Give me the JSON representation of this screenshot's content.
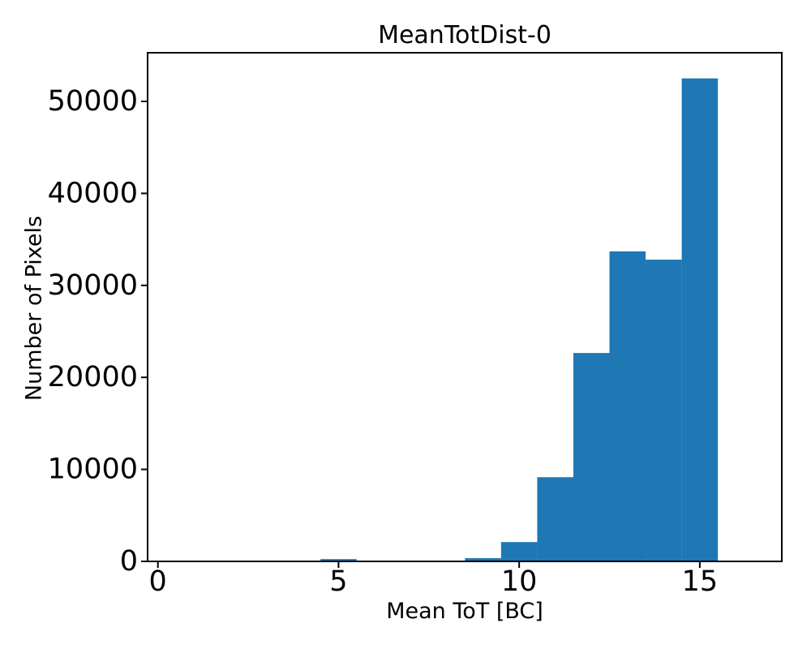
{
  "figure": {
    "title": "MeanTotDist-0",
    "xlabel": "Mean ToT [BC]",
    "ylabel": "Number of Pixels"
  },
  "chart_data": {
    "type": "bar",
    "subtype": "histogram",
    "title": "MeanTotDist-0",
    "xlabel": "Mean ToT [BC]",
    "ylabel": "Number of Pixels",
    "bin_edges": [
      -0.5,
      0.5,
      1.5,
      2.5,
      3.5,
      4.5,
      5.5,
      6.5,
      7.5,
      8.5,
      9.5,
      10.5,
      11.5,
      12.5,
      13.5,
      14.5,
      15.5
    ],
    "counts": [
      0,
      0,
      0,
      0,
      0,
      250,
      0,
      80,
      80,
      350,
      2100,
      9150,
      22650,
      33700,
      32800,
      52500
    ],
    "x_ticks": [
      0,
      5,
      10,
      15
    ],
    "y_ticks": [
      0,
      10000,
      20000,
      30000,
      40000,
      50000
    ],
    "xlim": [
      -0.285,
      17.27
    ],
    "ylim": [
      0,
      55290
    ],
    "bar_color": "#1f77b4",
    "axis_color": "#000000",
    "grid": false,
    "legend": false
  }
}
